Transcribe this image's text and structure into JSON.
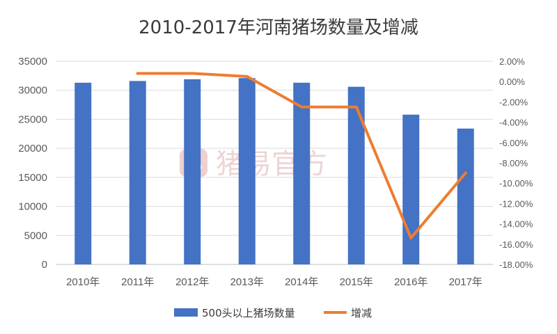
{
  "chart_data": {
    "type": "bar",
    "title": "2010-2017年河南猪场数量及增减",
    "categories": [
      "2010年",
      "2011年",
      "2012年",
      "2013年",
      "2014年",
      "2015年",
      "2016年",
      "2017年"
    ],
    "series": [
      {
        "name": "500头以上猪场数量",
        "type": "bar",
        "axis": "left",
        "color": "#4472C4",
        "values": [
          31300,
          31600,
          31900,
          32100,
          31300,
          30600,
          25800,
          23400
        ]
      },
      {
        "name": "增减",
        "type": "line",
        "axis": "right",
        "color": "#ED7D31",
        "values": [
          null,
          0.8,
          0.8,
          0.5,
          -2.5,
          -2.5,
          -15.4,
          -9.0
        ]
      }
    ],
    "y_left": {
      "min": 0,
      "max": 35000,
      "ticks": [
        "35000",
        "30000",
        "25000",
        "20000",
        "15000",
        "10000",
        "5000",
        "0"
      ],
      "tick_values": [
        35000,
        30000,
        25000,
        20000,
        15000,
        10000,
        5000,
        0
      ]
    },
    "y_right": {
      "min": -18,
      "max": 2,
      "ticks": [
        "2.00%",
        "0.00%",
        "-2.00%",
        "-4.00%",
        "-6.00%",
        "-8.00%",
        "-10.00%",
        "-12.00%",
        "-14.00%",
        "-16.00%",
        "-18.00%"
      ],
      "tick_values": [
        2,
        0,
        -2,
        -4,
        -6,
        -8,
        -10,
        -12,
        -14,
        -16,
        -18
      ]
    },
    "grid": true,
    "legend_position": "bottom"
  },
  "watermark": {
    "text": "猪易官方",
    "color": "#e6b3b3"
  }
}
